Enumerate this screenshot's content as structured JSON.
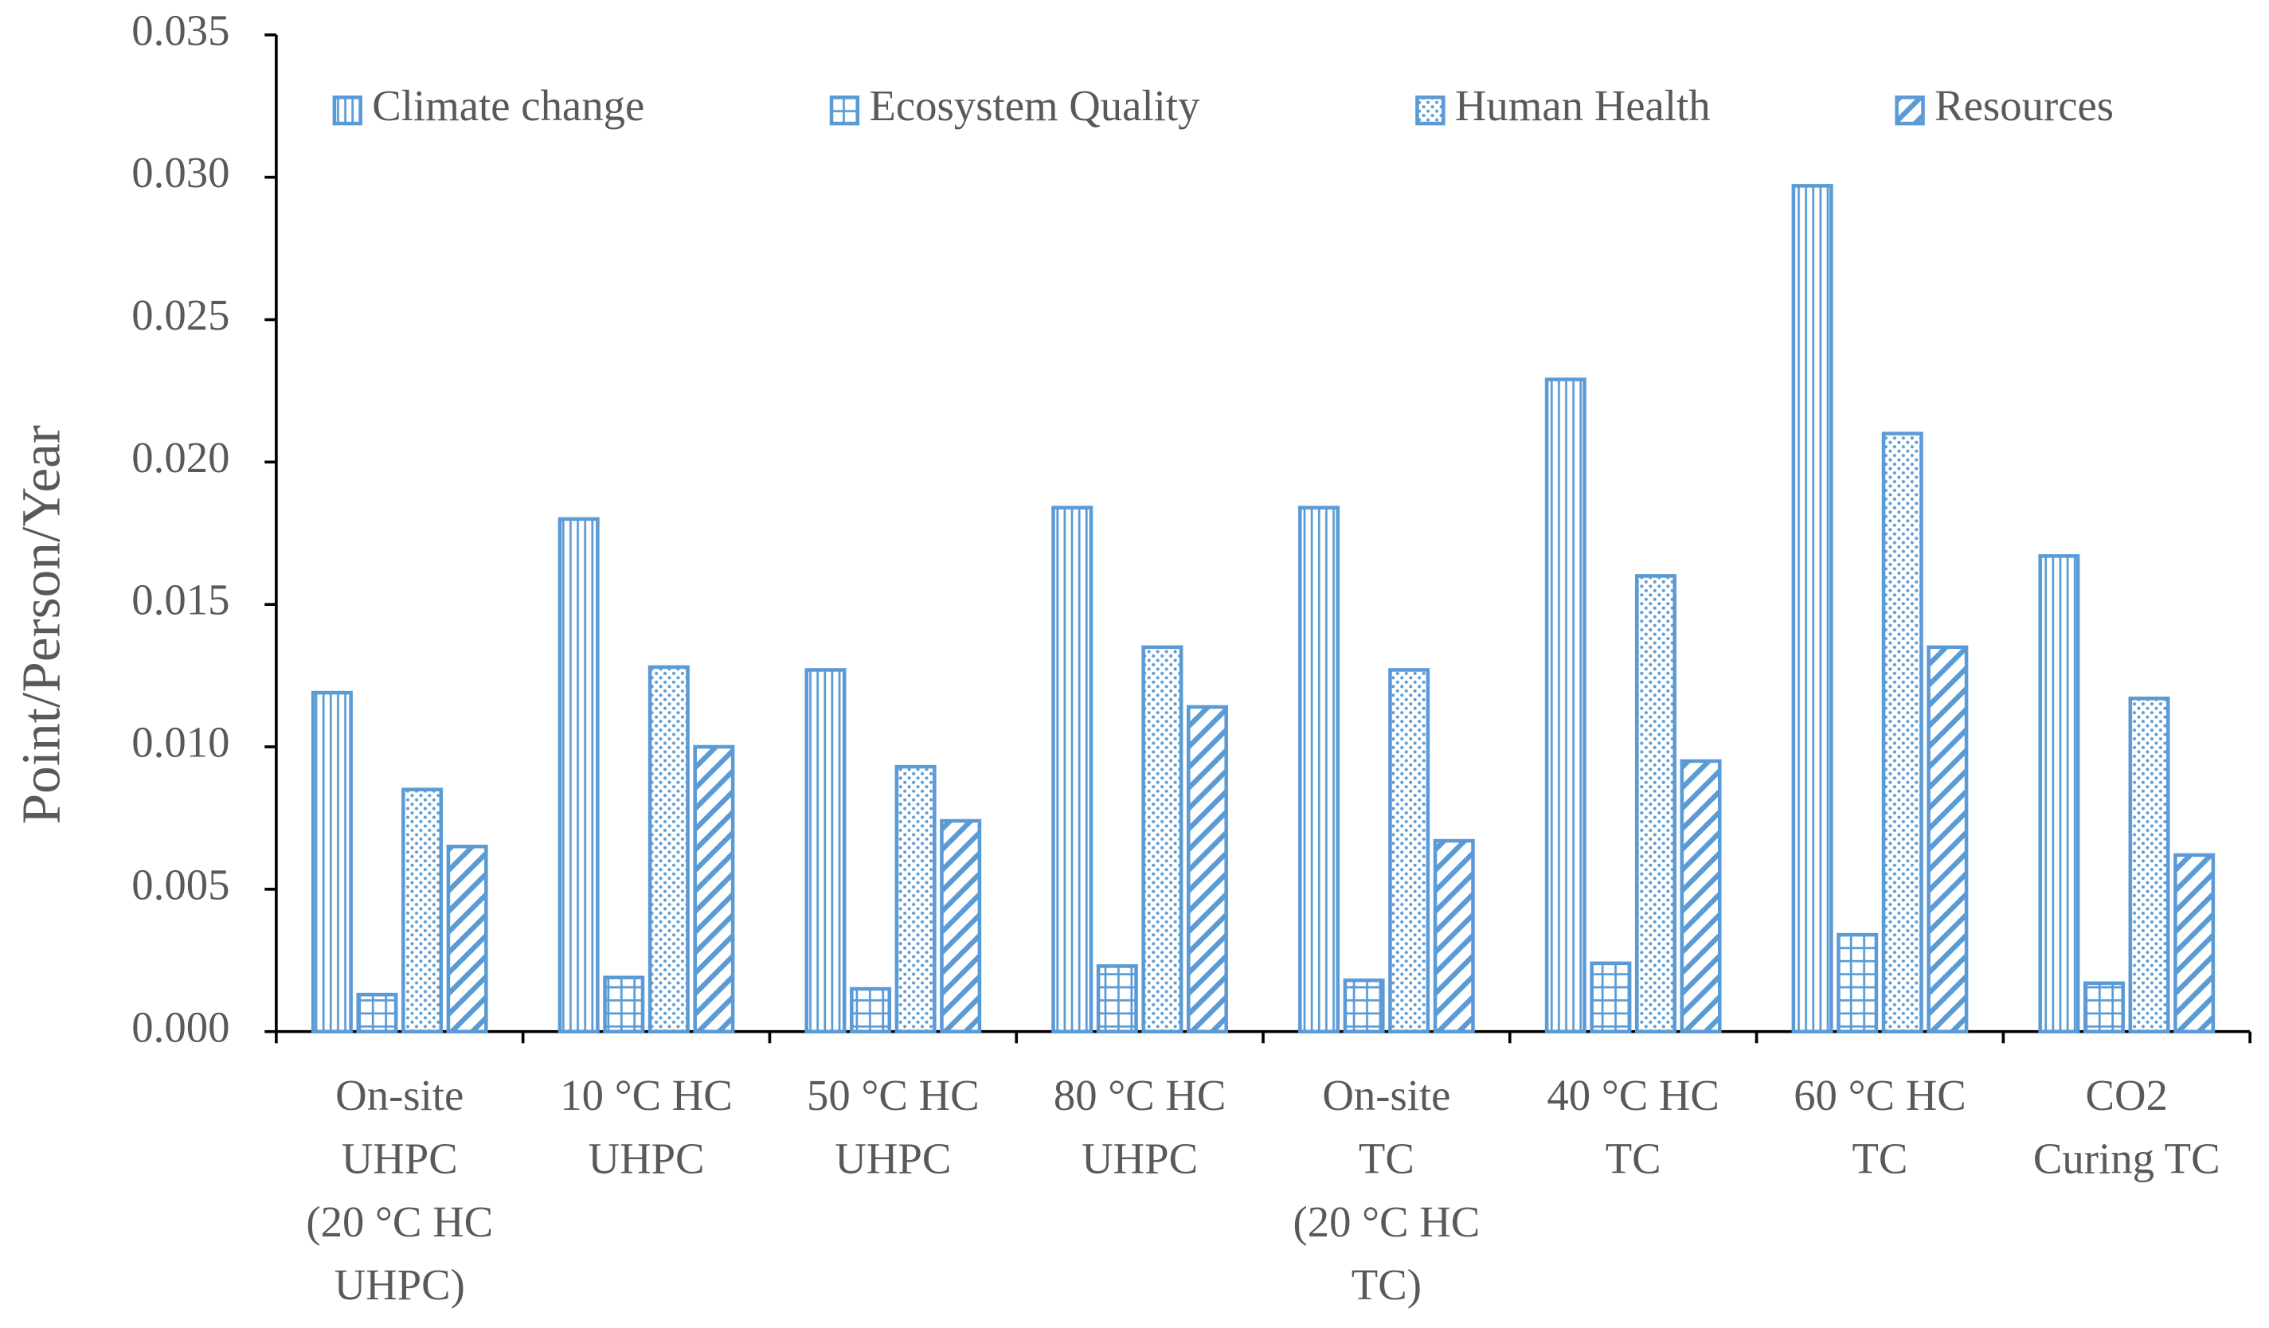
{
  "chart_data": {
    "type": "bar",
    "y_label": "Point/Person/Year",
    "categories": [
      [
        "On-site",
        "UHPC",
        "(20 °C HC",
        "UHPC)"
      ],
      [
        "10 °C HC",
        "UHPC"
      ],
      [
        "50 °C HC",
        "UHPC"
      ],
      [
        "80 °C HC",
        "UHPC"
      ],
      [
        "On-site",
        "TC",
        "(20 °C HC",
        "TC)"
      ],
      [
        "40 °C HC",
        "TC"
      ],
      [
        "60 °C HC",
        "TC"
      ],
      [
        "CO2",
        "Curing TC"
      ]
    ],
    "series": [
      {
        "name": "Climate change",
        "color": "#5b9bd5",
        "pattern": "vertical",
        "values": [
          0.0119,
          0.018,
          0.0127,
          0.0184,
          0.0184,
          0.0229,
          0.0297,
          0.0167
        ]
      },
      {
        "name": "Ecosystem Quality",
        "color": "#5b9bd5",
        "pattern": "grid",
        "values": [
          0.0013,
          0.0019,
          0.0015,
          0.0023,
          0.0018,
          0.0024,
          0.0034,
          0.0017
        ]
      },
      {
        "name": "Human Health",
        "color": "#5b9bd5",
        "pattern": "dots",
        "values": [
          0.0085,
          0.0128,
          0.0093,
          0.0135,
          0.0127,
          0.016,
          0.021,
          0.0117
        ]
      },
      {
        "name": "Resources",
        "color": "#5b9bd5",
        "pattern": "diagonal",
        "values": [
          0.0065,
          0.01,
          0.0074,
          0.0114,
          0.0067,
          0.0095,
          0.0135,
          0.0062
        ]
      }
    ],
    "ylim": [
      0,
      0.035
    ],
    "yticks": [
      {
        "value": 0,
        "label": "0.000"
      },
      {
        "value": 0.005,
        "label": "0.005"
      },
      {
        "value": 0.01,
        "label": "0.010"
      },
      {
        "value": 0.015,
        "label": "0.015"
      },
      {
        "value": 0.02,
        "label": "0.020"
      },
      {
        "value": 0.025,
        "label": "0.025"
      },
      {
        "value": 0.03,
        "label": "0.030"
      },
      {
        "value": 0.035,
        "label": "0.035"
      }
    ],
    "legend_position": "top"
  }
}
